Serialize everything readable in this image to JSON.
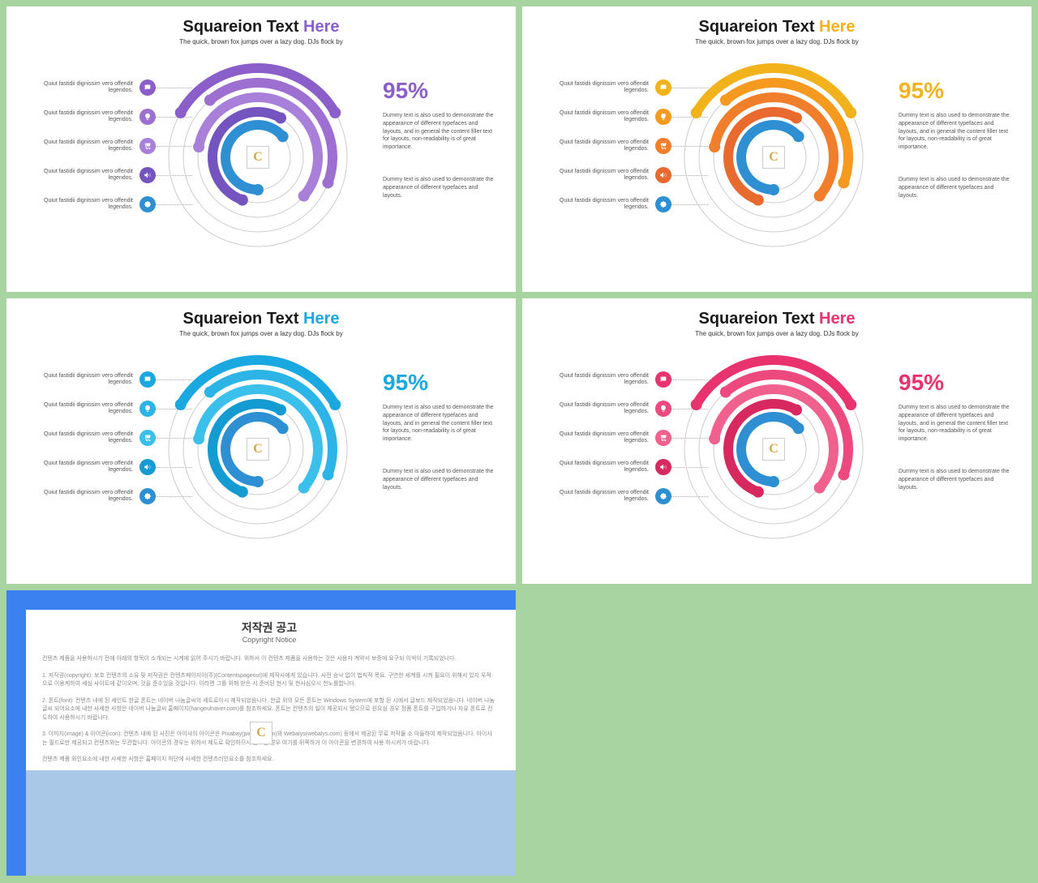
{
  "page_background": "#a8d4a2",
  "slides": [
    {
      "title_main": "Squareion Text",
      "title_accent": "Here",
      "accent_color": "#8a5fc9",
      "subtitle": "The quick, brown fox jumps over a lazy dog. DJs flock by",
      "legend_items": [
        {
          "text": "Quiut fastidii dignissim vero offendit legendos.",
          "icon": "chat",
          "color": "#8a5fc9"
        },
        {
          "text": "Quiut fastidii dignissim vero offendit legendos.",
          "icon": "bulb",
          "color": "#9c6fd1"
        },
        {
          "text": "Quiut fastidii dignissim vero offendit legendos.",
          "icon": "cart",
          "color": "#a87fd9"
        },
        {
          "text": "Quiut fastidii dignissim vero offendit legendos.",
          "icon": "sound",
          "color": "#7455c0"
        },
        {
          "text": "Quiut fastidii dignissim vero offendit legendos.",
          "icon": "badge",
          "color": "#2e8fd2"
        }
      ],
      "chart": {
        "center_letter": "C",
        "arcs": [
          {
            "r": 110,
            "start": 300,
            "end": 60,
            "stroke": "#8a5fc9",
            "width": 12
          },
          {
            "r": 92,
            "start": 320,
            "end": 110,
            "stroke": "#9c6fd1",
            "width": 12
          },
          {
            "r": 74,
            "start": 280,
            "end": 130,
            "stroke": "#a87fd9",
            "width": 12
          },
          {
            "r": 56,
            "start": 200,
            "end": 30,
            "stroke": "#7455c0",
            "width": 12
          },
          {
            "r": 40,
            "start": 180,
            "end": 50,
            "stroke": "#2e8fd2",
            "width": 12
          }
        ],
        "guide_color": "#cccccc"
      },
      "pct": "95%",
      "pct_color": "#8a5fc9",
      "para1": "Dummy text is also used to demonstrate the appearance of different typefaces and layouts, and in general the content filler text for layouts, non-readability is of great importance.",
      "para2": "Dummy text is also used to demonstrate the appearance of different typefaces and layouts."
    },
    {
      "title_main": "Squareion Text",
      "title_accent": "Here",
      "accent_color": "#f2b21b",
      "subtitle": "The quick, brown fox jumps over a lazy dog. DJs flock by",
      "legend_items": [
        {
          "text": "Quiut fastidii dignissim vero offendit legendos.",
          "icon": "chat",
          "color": "#f2b21b"
        },
        {
          "text": "Quiut fastidii dignissim vero offendit legendos.",
          "icon": "bulb",
          "color": "#f59a1f"
        },
        {
          "text": "Quiut fastidii dignissim vero offendit legendos.",
          "icon": "cart",
          "color": "#f07e2a"
        },
        {
          "text": "Quiut fastidii dignissim vero offendit legendos.",
          "icon": "sound",
          "color": "#e86a2f"
        },
        {
          "text": "Quiut fastidii dignissim vero offendit legendos.",
          "icon": "badge",
          "color": "#2e8fd2"
        }
      ],
      "chart": {
        "center_letter": "C",
        "arcs": [
          {
            "r": 110,
            "start": 300,
            "end": 60,
            "stroke": "#f2b21b",
            "width": 12
          },
          {
            "r": 92,
            "start": 320,
            "end": 110,
            "stroke": "#f59a1f",
            "width": 12
          },
          {
            "r": 74,
            "start": 280,
            "end": 130,
            "stroke": "#f07e2a",
            "width": 12
          },
          {
            "r": 56,
            "start": 200,
            "end": 30,
            "stroke": "#e86a2f",
            "width": 12
          },
          {
            "r": 40,
            "start": 180,
            "end": 50,
            "stroke": "#2e8fd2",
            "width": 12
          }
        ],
        "guide_color": "#cccccc"
      },
      "pct": "95%",
      "pct_color": "#f2b21b",
      "para1": "Dummy text is also used to demonstrate the appearance of different typefaces and layouts, and in general the content filler text for layouts, non-readability is of great importance.",
      "para2": "Dummy text is also used to demonstrate the appearance of different typefaces and layouts."
    },
    {
      "title_main": "Squareion Text",
      "title_accent": "Here",
      "accent_color": "#1aa8e0",
      "subtitle": "The quick, brown fox jumps over a lazy dog. DJs flock by",
      "legend_items": [
        {
          "text": "Quiut fastidii dignissim vero offendit legendos.",
          "icon": "chat",
          "color": "#1aa8e0"
        },
        {
          "text": "Quiut fastidii dignissim vero offendit legendos.",
          "icon": "bulb",
          "color": "#2cb4e6"
        },
        {
          "text": "Quiut fastidii dignissim vero offendit legendos.",
          "icon": "cart",
          "color": "#3bc0eb"
        },
        {
          "text": "Quiut fastidii dignissim vero offendit legendos.",
          "icon": "sound",
          "color": "#149bd1"
        },
        {
          "text": "Quiut fastidii dignissim vero offendit legendos.",
          "icon": "badge",
          "color": "#2e8fd2"
        }
      ],
      "chart": {
        "center_letter": "C",
        "arcs": [
          {
            "r": 110,
            "start": 300,
            "end": 60,
            "stroke": "#1aa8e0",
            "width": 12
          },
          {
            "r": 92,
            "start": 320,
            "end": 110,
            "stroke": "#2cb4e6",
            "width": 12
          },
          {
            "r": 74,
            "start": 280,
            "end": 130,
            "stroke": "#3bc0eb",
            "width": 12
          },
          {
            "r": 56,
            "start": 200,
            "end": 30,
            "stroke": "#149bd1",
            "width": 12
          },
          {
            "r": 40,
            "start": 180,
            "end": 50,
            "stroke": "#2e8fd2",
            "width": 12
          }
        ],
        "guide_color": "#cccccc"
      },
      "pct": "95%",
      "pct_color": "#1aa8e0",
      "para1": "Dummy text is also used to demonstrate the appearance of different typefaces and layouts, and in general the content filler text for layouts, non-readability is of great importance.",
      "para2": "Dummy text is also used to demonstrate the appearance of different typefaces and layouts."
    },
    {
      "title_main": "Squareion Text",
      "title_accent": "Here",
      "accent_color": "#e8336e",
      "subtitle": "The quick, brown fox jumps over a lazy dog. DJs flock by",
      "legend_items": [
        {
          "text": "Quiut fastidii dignissim vero offendit legendos.",
          "icon": "chat",
          "color": "#e8336e"
        },
        {
          "text": "Quiut fastidii dignissim vero offendit legendos.",
          "icon": "bulb",
          "color": "#ec4a7e"
        },
        {
          "text": "Quiut fastidii dignissim vero offendit legendos.",
          "icon": "cart",
          "color": "#f0618e"
        },
        {
          "text": "Quiut fastidii dignissim vero offendit legendos.",
          "icon": "sound",
          "color": "#d82860"
        },
        {
          "text": "Quiut fastidii dignissim vero offendit legendos.",
          "icon": "badge",
          "color": "#2e8fd2"
        }
      ],
      "chart": {
        "center_letter": "C",
        "arcs": [
          {
            "r": 110,
            "start": 300,
            "end": 60,
            "stroke": "#e8336e",
            "width": 12
          },
          {
            "r": 92,
            "start": 320,
            "end": 110,
            "stroke": "#ec4a7e",
            "width": 12
          },
          {
            "r": 74,
            "start": 280,
            "end": 130,
            "stroke": "#f0618e",
            "width": 12
          },
          {
            "r": 56,
            "start": 200,
            "end": 30,
            "stroke": "#d82860",
            "width": 12
          },
          {
            "r": 40,
            "start": 180,
            "end": 50,
            "stroke": "#2e8fd2",
            "width": 12
          }
        ],
        "guide_color": "#cccccc"
      },
      "pct": "95%",
      "pct_color": "#e8336e",
      "para1": "Dummy text is also used to demonstrate the appearance of different typefaces and layouts, and in general the content filler text for layouts, non-readability is of great importance.",
      "para2": "Dummy text is also used to demonstrate the appearance of different typefaces and layouts."
    }
  ],
  "copyright": {
    "border_color": "#3b82f0",
    "lower_color": "#a9c8e8",
    "title": "저작권 공고",
    "subtitle": "Copyright Notice",
    "paras": [
      "컨텐츠 제품을 사용하시기 전에 아래의 항목이 소개되는 시계에 읽어 주시기 바랍니다. 위하서 이 컨텐츠 제품을 사용하는 것은 사용자 계약서 보증에 요구되 이씩이 기록되었니다.",
      "1. 저작권(copyright): 보호 컨텐츠의 소유 및 저작권은 컨텐츠페이지이(주)(Contentspageout)에 제작사에게 있습니다. 사전 승낙 없이 법칙적 목요. 구연한 세계를 시켜 필요이 위해서 있지 우적으로 이용케하여 세심 사이트에 같이오며, 것을 준수있을 것입니다. 이라면 그를 위해 받은 시 준비된 현시 및 현사심으시 천노를합니다.",
      "2. 폰트(font): 컨텐츠 내에 된 세인트 한글 폰트는 네이버 나눔글씨의 세트로이시 제작되었음니다. 한글 외의 모든 폰트는 Windows System에 포함 된 시에서 글보드 제작되었음니다. 네이버 나눔글씨 되어요소에 내한 사세한 사항은 네이버 나눔글씨 홈페이지(hangeulnaver.com)를 참조하세요. 폰트는 컨텐츠의 일이 제공되시 됐으므로 원요심 경우 정품 폰트를 구입하거나 자유 폰트로 전도하여 사용하시기 바랍니다.",
      "3. 이미지(image) & 아이콘(icon): 컨텐츠 내에 된 사진은 아이샤의 아이콘은 Pixabay(pixabay.com)와 Webalys(webalys.com) 등에서 제공된 무료 저작물 소 아들하여 제작되었음니다. 아이샤는 필드로만 제공되고 컨텐츠와는 무관합니다. 아이콘의 경우는 위하서 제도로 확인하므시 원요심 경우 여기를 뒤쪽하거 이 아이콘을 변경하여 사용 하시커가 바랍니다.",
      "컨텐츠 제품 와인요소에 내한 사세한 사항은 홈페이지 하단에 사세한 컨텐츠러인요소를 참조하세요."
    ]
  }
}
